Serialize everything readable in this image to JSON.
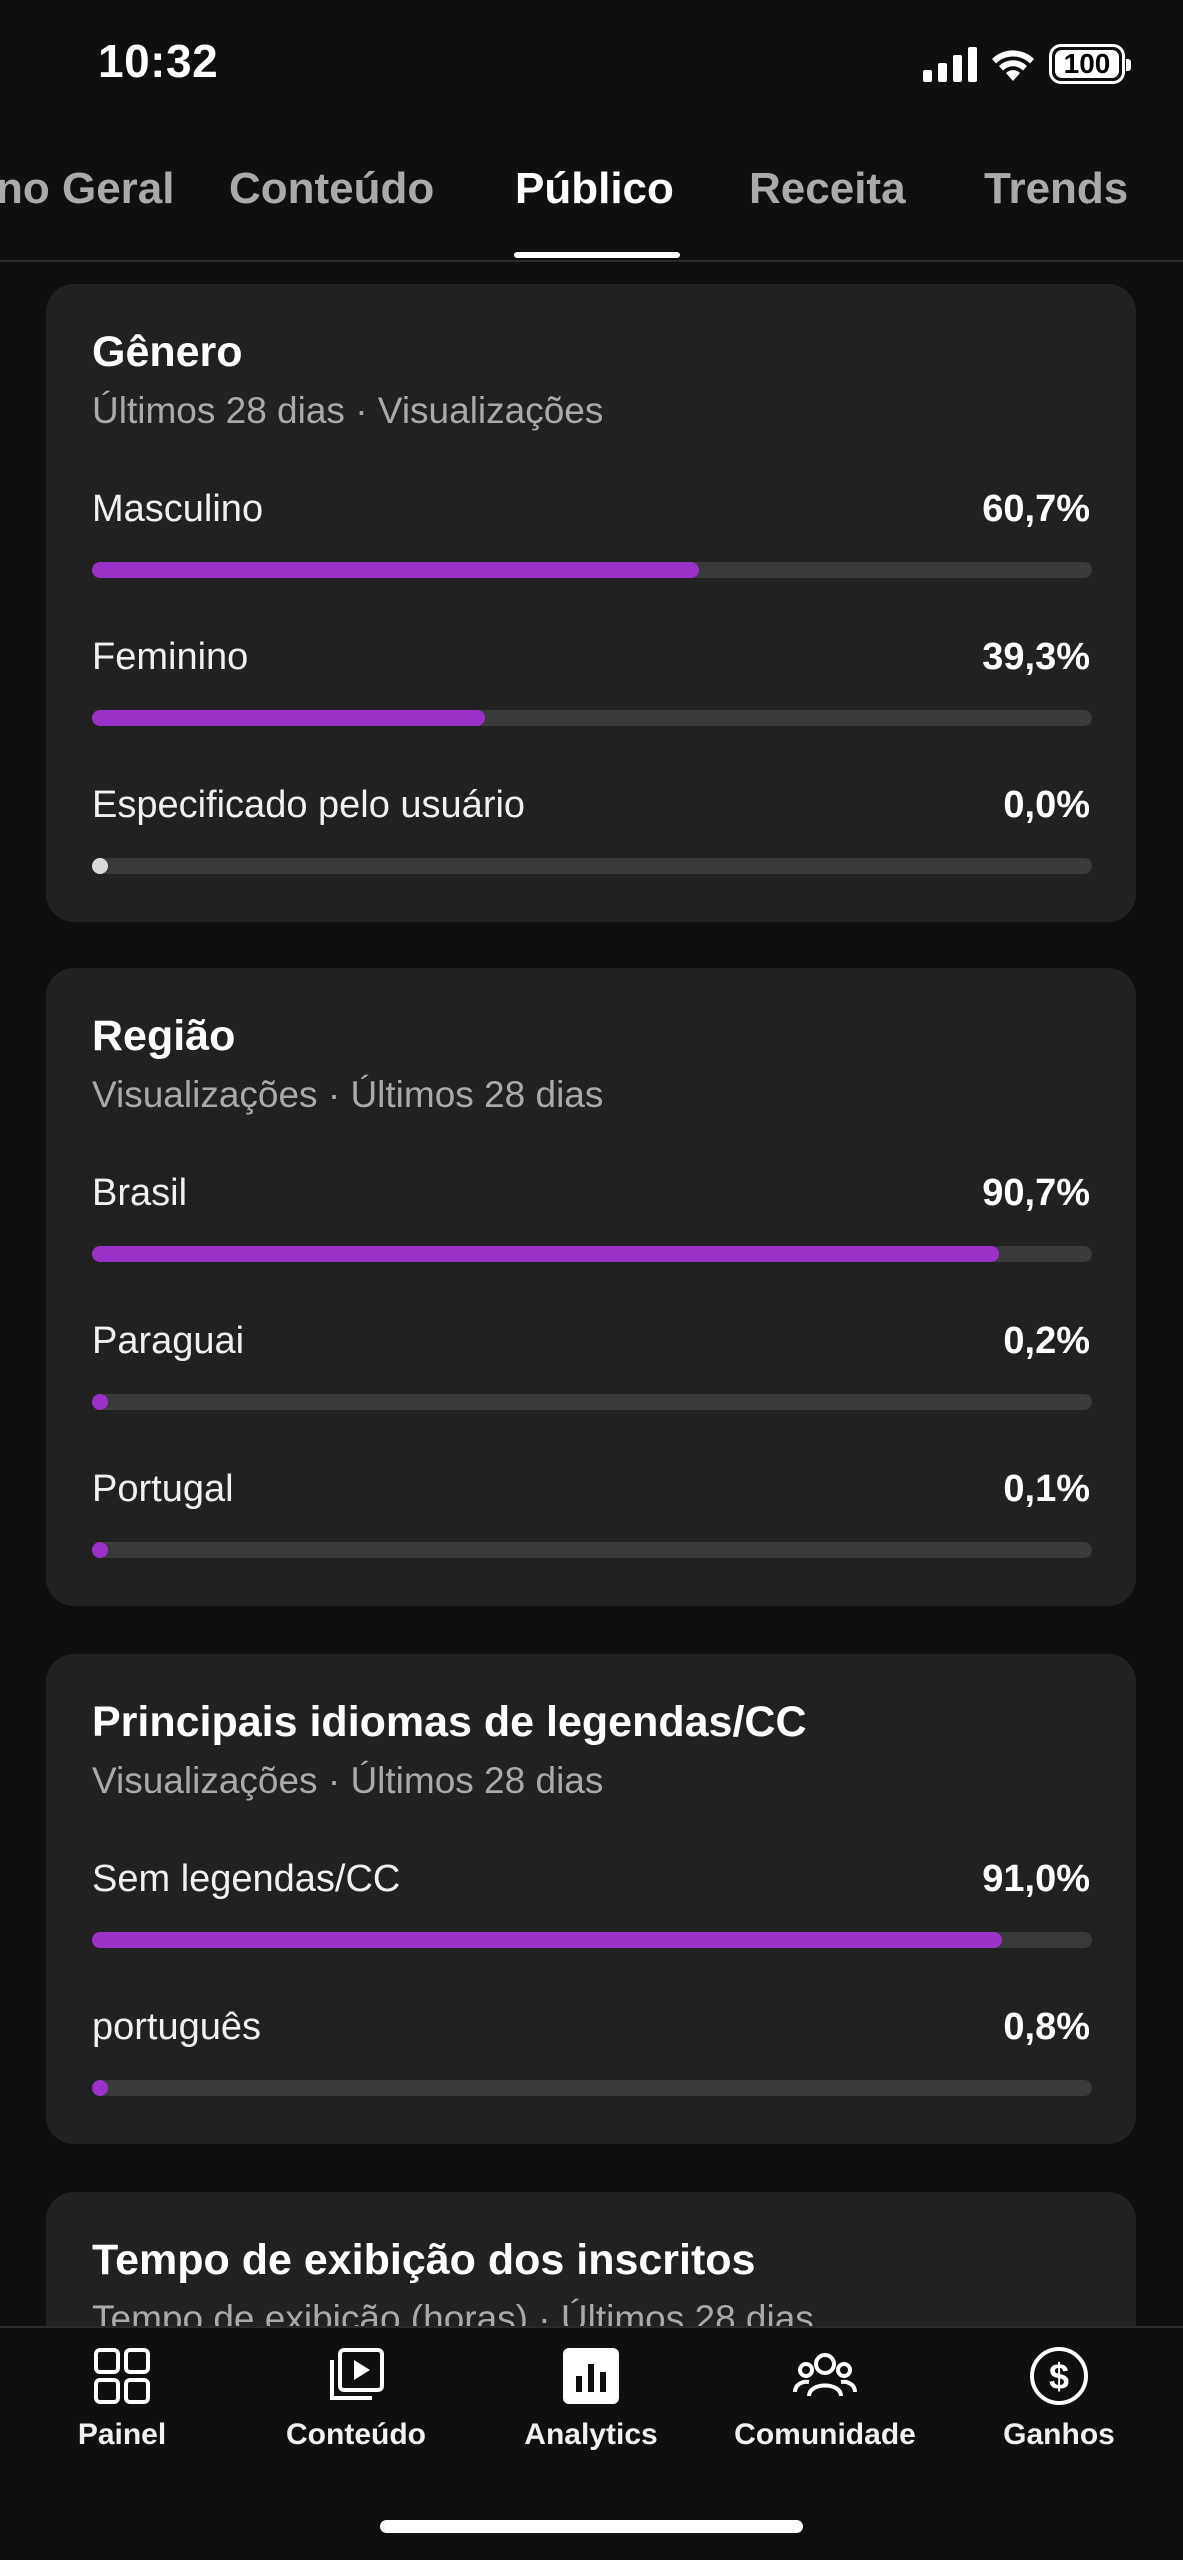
{
  "status_bar": {
    "time": "10:32",
    "battery": "100"
  },
  "tabs": [
    {
      "label": "no Geral"
    },
    {
      "label": "Conteúdo"
    },
    {
      "label": "Público",
      "active": true
    },
    {
      "label": "Receita"
    },
    {
      "label": "Trends"
    }
  ],
  "colors": {
    "accent": "#9a31c8",
    "card": "#212121",
    "background": "#0f0f0f"
  },
  "cards": {
    "gender": {
      "title": "Gênero",
      "subtitle": "Últimos 28 dias · Visualizações",
      "rows": [
        {
          "label": "Masculino",
          "value": "60,7%",
          "fraction": 0.607
        },
        {
          "label": "Feminino",
          "value": "39,3%",
          "fraction": 0.393
        },
        {
          "label": "Especificado pelo usuário",
          "value": "0,0%",
          "fraction": 0.0
        }
      ]
    },
    "region": {
      "title": "Região",
      "subtitle": "Visualizações · Últimos 28 dias",
      "rows": [
        {
          "label": "Brasil",
          "value": "90,7%",
          "fraction": 0.907
        },
        {
          "label": "Paraguai",
          "value": "0,2%",
          "fraction": 0.002
        },
        {
          "label": "Portugal",
          "value": "0,1%",
          "fraction": 0.001
        }
      ]
    },
    "captions": {
      "title": "Principais idiomas de legendas/CC",
      "subtitle": "Visualizações · Últimos 28 dias",
      "rows": [
        {
          "label": "Sem legendas/CC",
          "value": "91,0%",
          "fraction": 0.91
        },
        {
          "label": "português",
          "value": "0,8%",
          "fraction": 0.008
        }
      ]
    },
    "subscribers": {
      "title": "Tempo de exibição dos inscritos",
      "subtitle": "Tempo de exibição (horas) · Últimos 28 dias"
    }
  },
  "bottom_nav": [
    {
      "label": "Painel",
      "icon": "dashboard-icon"
    },
    {
      "label": "Conteúdo",
      "icon": "content-icon"
    },
    {
      "label": "Analytics",
      "icon": "analytics-icon",
      "active": true
    },
    {
      "label": "Comunidade",
      "icon": "community-icon"
    },
    {
      "label": "Ganhos",
      "icon": "earnings-icon"
    }
  ]
}
